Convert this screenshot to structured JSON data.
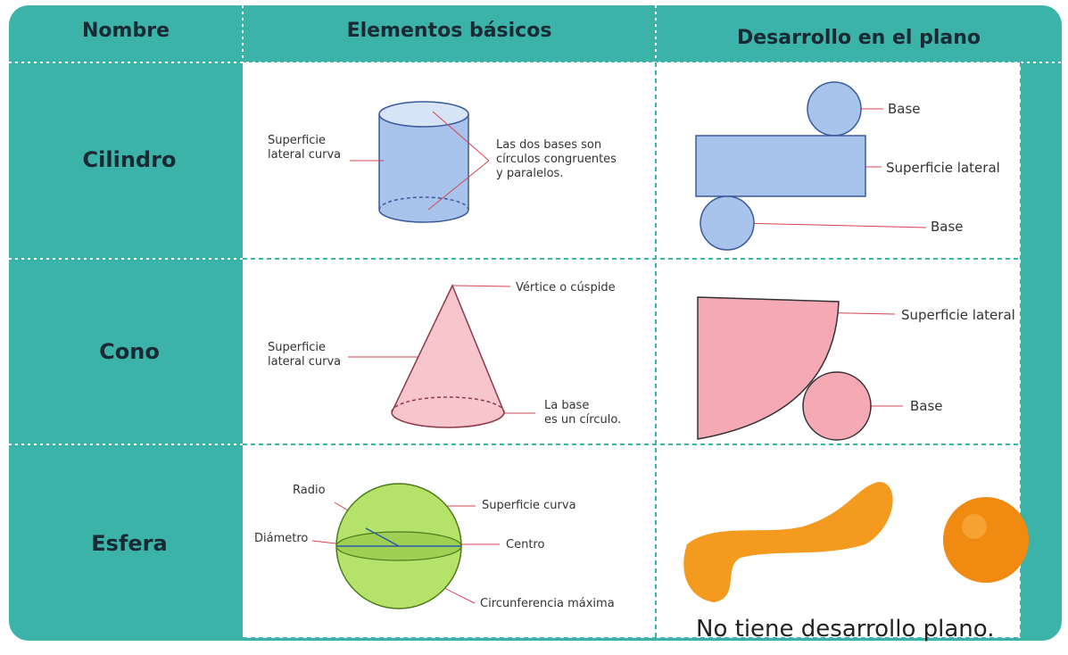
{
  "table": {
    "header": [
      "Nombre",
      "Elementos básicos",
      "Desarrollo en el plano"
    ],
    "rows": [
      {
        "name": "Cilindro",
        "elements": [
          "Superficie\nlateral curva",
          "Las dos bases son\ncírculos congruentes\ny paralelos."
        ],
        "development": [
          "Base",
          "Superficie lateral",
          "Base"
        ]
      },
      {
        "name": "Cono",
        "elements": [
          "Vértice o cúspide",
          "Superficie\nlateral curva",
          "La base\nes un círculo."
        ],
        "development": [
          "Superficie lateral",
          "Base"
        ]
      },
      {
        "name": "Esfera",
        "elements": [
          "Radio",
          "Diámetro",
          "Superficie curva",
          "Centro",
          "Circunferencia máxima"
        ],
        "development": [
          "No tiene desarrollo plano."
        ]
      }
    ]
  }
}
